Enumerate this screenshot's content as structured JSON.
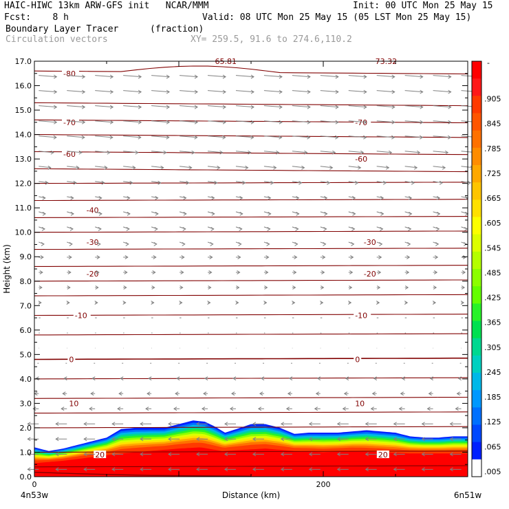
{
  "header": {
    "model_line": "HAIC-HIWC 13km ARW-GFS init   NCAR/MMM",
    "init": "Init: 00 UTC Mon 25 May 15",
    "fcst": "Fcst:    8 h",
    "valid": "Valid: 08 UTC Mon 25 May 15 (05 LST Mon 25 May 15)",
    "field": "Boundary Layer Tracer",
    "field_units": "(fraction)",
    "vectors": "Circulation vectors",
    "xy": "XY= 259.5, 91.6 to 274.6,110.2"
  },
  "chart_data": {
    "type": "area",
    "ylabel": "Height (km)",
    "xlabel": "Distance (km)",
    "ylim": [
      0,
      17
    ],
    "xlim": [
      0,
      300
    ],
    "y_ticks": [
      "0.0",
      "1.0",
      "2.0",
      "3.0",
      "4.0",
      "5.0",
      "6.0",
      "7.0",
      "8.0",
      "9.0",
      "10.0",
      "11.0",
      "12.0",
      "13.0",
      "14.0",
      "15.0",
      "16.0",
      "17.0"
    ],
    "x_ticks": [
      {
        "value": 0,
        "label": "0"
      },
      {
        "value": 200,
        "label": "200"
      }
    ],
    "x_end_labels": [
      "4n53w",
      "6n51w"
    ],
    "temperature_contour_labels": [
      {
        "label": "-80",
        "x": 20,
        "y": 16.5
      },
      {
        "label": "-70",
        "x": 20,
        "y": 14.5
      },
      {
        "label": "-70",
        "x": 222,
        "y": 14.5
      },
      {
        "label": "-60",
        "x": 20,
        "y": 13.2
      },
      {
        "label": "-60",
        "x": 222,
        "y": 13.0
      },
      {
        "label": "-40",
        "x": 36,
        "y": 10.9
      },
      {
        "label": "-30",
        "x": 36,
        "y": 9.6
      },
      {
        "label": "-30",
        "x": 228,
        "y": 9.6
      },
      {
        "label": "-20",
        "x": 36,
        "y": 8.3
      },
      {
        "label": "-20",
        "x": 228,
        "y": 8.3
      },
      {
        "label": "-10",
        "x": 28,
        "y": 6.6
      },
      {
        "label": "-10",
        "x": 222,
        "y": 6.6
      },
      {
        "label": "0",
        "x": 24,
        "y": 4.8
      },
      {
        "label": "0",
        "x": 222,
        "y": 4.8
      },
      {
        "label": "10",
        "x": 24,
        "y": 3.0
      },
      {
        "label": "10",
        "x": 222,
        "y": 3.0
      },
      {
        "label": "20",
        "x": 42,
        "y": 0.9
      },
      {
        "label": "20",
        "x": 238,
        "y": 0.9
      },
      {
        "label": "65.81",
        "x": 125,
        "y": 17.0
      },
      {
        "label": "73.32",
        "x": 236,
        "y": 17.0
      }
    ],
    "isotherm_heights_km": [
      16.6,
      15.3,
      14.6,
      14.0,
      13.3,
      12.6,
      12.0,
      11.3,
      10.6,
      10.0,
      9.3,
      8.6,
      8.0,
      7.4,
      6.6,
      5.8,
      4.8,
      4.0,
      3.2,
      2.6,
      2.0,
      1.0,
      0.4
    ],
    "tracer_top_km": [
      [
        0,
        1.2
      ],
      [
        10,
        1.05
      ],
      [
        20,
        1.15
      ],
      [
        30,
        1.3
      ],
      [
        40,
        1.45
      ],
      [
        50,
        1.6
      ],
      [
        60,
        1.95
      ],
      [
        70,
        2.0
      ],
      [
        80,
        2.0
      ],
      [
        90,
        2.0
      ],
      [
        100,
        2.15
      ],
      [
        110,
        2.3
      ],
      [
        118,
        2.25
      ],
      [
        125,
        2.05
      ],
      [
        132,
        1.8
      ],
      [
        140,
        1.95
      ],
      [
        150,
        2.15
      ],
      [
        160,
        2.15
      ],
      [
        170,
        2.0
      ],
      [
        180,
        1.75
      ],
      [
        190,
        1.8
      ],
      [
        200,
        1.8
      ],
      [
        210,
        1.8
      ],
      [
        220,
        1.85
      ],
      [
        230,
        1.9
      ],
      [
        240,
        1.85
      ],
      [
        250,
        1.8
      ],
      [
        260,
        1.65
      ],
      [
        270,
        1.6
      ],
      [
        280,
        1.6
      ],
      [
        290,
        1.65
      ],
      [
        300,
        1.65
      ]
    ],
    "tracer_red_top_km": [
      [
        0,
        0.55
      ],
      [
        20,
        0.65
      ],
      [
        40,
        0.8
      ],
      [
        60,
        0.95
      ],
      [
        80,
        1.05
      ],
      [
        100,
        1.15
      ],
      [
        115,
        1.2
      ],
      [
        130,
        1.05
      ],
      [
        145,
        1.1
      ],
      [
        160,
        1.15
      ],
      [
        180,
        1.05
      ],
      [
        200,
        1.0
      ],
      [
        220,
        1.05
      ],
      [
        240,
        1.0
      ],
      [
        260,
        0.95
      ],
      [
        280,
        0.95
      ],
      [
        300,
        0.95
      ]
    ],
    "colorbar": {
      "labels": [
        ".905",
        ".845",
        ".785",
        ".725",
        ".665",
        ".605",
        ".545",
        ".485",
        ".425",
        ".365",
        ".305",
        ".245",
        ".185",
        ".125",
        ".065",
        ".005"
      ],
      "top_label": "-",
      "colors": [
        "#ff0000",
        "#ff1818",
        "#ff3a00",
        "#ff5500",
        "#ff7100",
        "#ff8c00",
        "#ffa800",
        "#ffc400",
        "#ffe000",
        "#fcff00",
        "#dcff00",
        "#b4ff00",
        "#8cff00",
        "#64ff00",
        "#28f228",
        "#00e050",
        "#00d890",
        "#00d0c0",
        "#00b8e8",
        "#0098ff",
        "#0070ff",
        "#0048ff",
        "#0020ff",
        "#ffffff"
      ]
    },
    "contour_color": "#800000",
    "vector_color": "#808080"
  }
}
